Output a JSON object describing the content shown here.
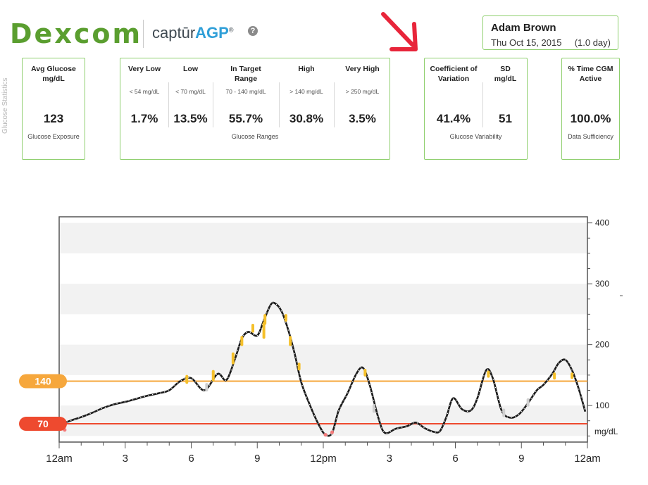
{
  "header": {
    "brand": "Dexcom",
    "product_prefix": "captūr",
    "product_suffix": "AGP",
    "product_mark": "®",
    "help_icon": "question-circle-icon"
  },
  "patient": {
    "name": "Adam Brown",
    "date": "Thu Oct 15, 2015",
    "days": "(1.0 day)"
  },
  "stats": {
    "side_label": "Glucose Statistics",
    "avg": {
      "title": "Avg Glucose mg/dL",
      "value": "123",
      "caption": "Glucose Exposure"
    },
    "ranges": {
      "caption": "Glucose Ranges",
      "items": [
        {
          "title": "Very Low",
          "range": "< 54 mg/dL",
          "value": "1.7%"
        },
        {
          "title": "Low",
          "range": "< 70 mg/dL",
          "value": "13.5%"
        },
        {
          "title": "In Target Range",
          "range": "70 - 140 mg/dL",
          "value": "55.7%"
        },
        {
          "title": "High",
          "range": "> 140 mg/dL",
          "value": "30.8%"
        },
        {
          "title": "Very High",
          "range": "> 250 mg/dL",
          "value": "3.5%"
        }
      ]
    },
    "variability": {
      "caption": "Glucose Variability",
      "items": [
        {
          "title": "Coefficient of Variation",
          "value": "41.4%"
        },
        {
          "title": "SD mg/dL",
          "value": "51"
        }
      ]
    },
    "sufficiency": {
      "title": "% Time CGM Active",
      "value": "100.0%",
      "caption": "Data Sufficiency"
    }
  },
  "colors": {
    "brand_green": "#5a9e2f",
    "box_border": "#8fcf6e",
    "target_high": "#f6a73c",
    "target_low": "#ee4a2f",
    "trace": "#1a1a1a",
    "arrow": "#e8253a"
  },
  "chart_data": {
    "type": "line",
    "unit_label": "mg/dL",
    "ylim": [
      40,
      410
    ],
    "yticks": [
      100,
      200,
      300,
      400
    ],
    "xticks": [
      {
        "hour": 0,
        "label": "12am"
      },
      {
        "hour": 3,
        "label": "3"
      },
      {
        "hour": 6,
        "label": "6"
      },
      {
        "hour": 9,
        "label": "9"
      },
      {
        "hour": 12,
        "label": "12pm"
      },
      {
        "hour": 15,
        "label": "3"
      },
      {
        "hour": 18,
        "label": "6"
      },
      {
        "hour": 21,
        "label": "9"
      },
      {
        "hour": 24,
        "label": "12am"
      }
    ],
    "thresholds": [
      {
        "value": 140,
        "label": "140",
        "color": "#f6a73c"
      },
      {
        "value": 70,
        "label": "70",
        "color": "#ee4a2f"
      }
    ],
    "grid": true,
    "series": [
      {
        "points": [
          [
            0.0,
            68
          ],
          [
            0.5,
            75
          ],
          [
            1.0,
            81
          ],
          [
            1.5,
            88
          ],
          [
            2.0,
            96
          ],
          [
            2.5,
            102
          ],
          [
            3.0,
            106
          ],
          [
            3.5,
            111
          ],
          [
            4.0,
            116
          ],
          [
            4.5,
            120
          ],
          [
            5.0,
            125
          ],
          [
            5.5,
            140
          ],
          [
            6.0,
            145
          ],
          [
            6.6,
            125
          ],
          [
            7.2,
            152
          ],
          [
            7.6,
            142
          ],
          [
            8.0,
            178
          ],
          [
            8.3,
            210
          ],
          [
            8.6,
            221
          ],
          [
            9.0,
            215
          ],
          [
            9.3,
            240
          ],
          [
            9.6,
            265
          ],
          [
            9.8,
            268
          ],
          [
            10.1,
            255
          ],
          [
            10.4,
            225
          ],
          [
            10.7,
            185
          ],
          [
            11.0,
            138
          ],
          [
            11.4,
            100
          ],
          [
            11.8,
            68
          ],
          [
            12.1,
            52
          ],
          [
            12.4,
            55
          ],
          [
            12.7,
            92
          ],
          [
            13.1,
            120
          ],
          [
            13.5,
            152
          ],
          [
            13.8,
            162
          ],
          [
            14.1,
            135
          ],
          [
            14.5,
            80
          ],
          [
            14.8,
            55
          ],
          [
            15.3,
            62
          ],
          [
            15.8,
            66
          ],
          [
            16.2,
            72
          ],
          [
            16.6,
            63
          ],
          [
            17.0,
            57
          ],
          [
            17.3,
            58
          ],
          [
            17.6,
            82
          ],
          [
            17.9,
            112
          ],
          [
            18.3,
            94
          ],
          [
            18.7,
            92
          ],
          [
            19.0,
            112
          ],
          [
            19.4,
            158
          ],
          [
            19.7,
            145
          ],
          [
            20.1,
            92
          ],
          [
            20.5,
            80
          ],
          [
            20.9,
            86
          ],
          [
            21.3,
            104
          ],
          [
            21.7,
            125
          ],
          [
            22.0,
            134
          ],
          [
            22.4,
            152
          ],
          [
            22.7,
            170
          ],
          [
            23.0,
            175
          ],
          [
            23.3,
            158
          ],
          [
            23.6,
            128
          ],
          [
            23.9,
            90
          ]
        ],
        "color": "#1a1a1a"
      }
    ],
    "high_markers": [
      {
        "x": 5.8,
        "y0": 138,
        "y1": 148
      },
      {
        "x": 7.0,
        "y0": 142,
        "y1": 156
      },
      {
        "x": 7.9,
        "y0": 170,
        "y1": 185
      },
      {
        "x": 8.3,
        "y0": 200,
        "y1": 212
      },
      {
        "x": 8.8,
        "y0": 222,
        "y1": 232
      },
      {
        "x": 9.3,
        "y0": 212,
        "y1": 235
      },
      {
        "x": 9.35,
        "y0": 235,
        "y1": 248
      },
      {
        "x": 10.3,
        "y0": 240,
        "y1": 248
      },
      {
        "x": 10.5,
        "y0": 200,
        "y1": 212
      },
      {
        "x": 10.9,
        "y0": 160,
        "y1": 168
      },
      {
        "x": 13.9,
        "y0": 150,
        "y1": 158
      },
      {
        "x": 19.5,
        "y0": 148,
        "y1": 155
      },
      {
        "x": 22.5,
        "y0": 145,
        "y1": 152
      },
      {
        "x": 23.3,
        "y0": 146,
        "y1": 152
      }
    ],
    "low_markers": [
      {
        "x": 0.25,
        "y": 60
      },
      {
        "x": 12.1,
        "y": 52
      },
      {
        "x": 12.4,
        "y": 56
      }
    ],
    "gap_markers": [
      {
        "x": 6.7,
        "y": 130
      },
      {
        "x": 14.3,
        "y": 95
      },
      {
        "x": 20.2,
        "y": 88
      },
      {
        "x": 21.3,
        "y": 105
      }
    ]
  }
}
